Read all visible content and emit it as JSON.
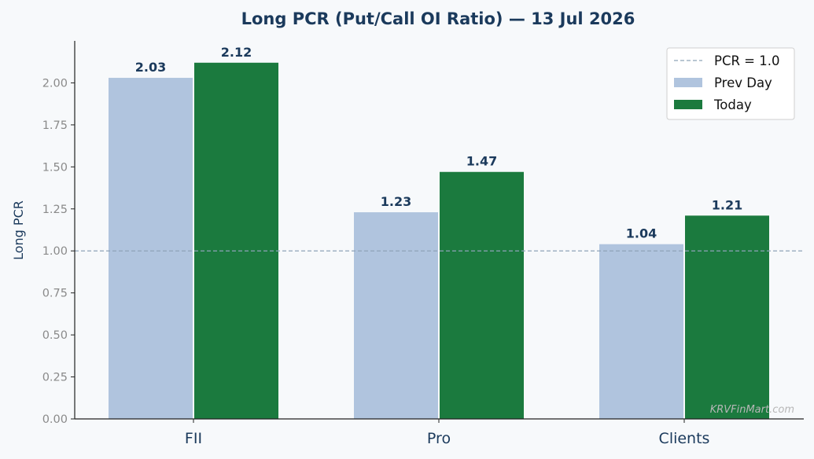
{
  "chart_data": {
    "type": "bar",
    "title": "Long PCR (Put/Call OI Ratio) — 13 Jul 2026",
    "xlabel": "",
    "ylabel": "Long PCR",
    "categories": [
      "FII",
      "Pro",
      "Clients"
    ],
    "series": [
      {
        "name": "Prev Day",
        "values": [
          2.03,
          1.23,
          1.04
        ],
        "color": "#b0c4de",
        "labels": [
          "2.03",
          "1.23",
          "1.04"
        ]
      },
      {
        "name": "Today",
        "values": [
          2.12,
          1.47,
          1.21
        ],
        "color": "#1b7a3e",
        "labels": [
          "2.12",
          "1.47",
          "1.21"
        ]
      }
    ],
    "reference_line": {
      "label": "PCR = 1.0",
      "value": 1.0,
      "color": "#8fa3b8",
      "style": "dashed"
    },
    "ylim": [
      0,
      2.25
    ],
    "yticks": [
      "0.00",
      "0.25",
      "0.50",
      "0.75",
      "1.00",
      "1.25",
      "1.50",
      "1.75",
      "2.00"
    ],
    "grid": false,
    "legend_position": "top-right"
  },
  "watermark": "KRVFinMart.com",
  "colors": {
    "background": "#f7f9fb",
    "text": "#1b3a5c",
    "axis": "#222222"
  }
}
